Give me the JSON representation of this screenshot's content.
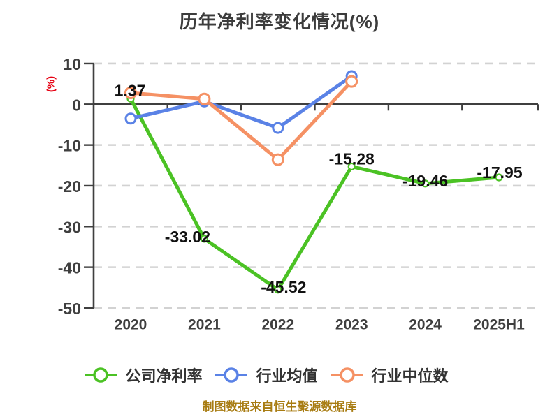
{
  "title": "历年净利率变化情况(%)",
  "footer": "制图数据来自恒生聚源数据库",
  "axes": {
    "y_label": "(%)"
  },
  "colors": {
    "title": "#3c3c3c",
    "axis": "#3f3f3f",
    "grid": "#d2d2d2",
    "tick_label": "#3f3f3f",
    "data_label": "#111111",
    "y_axis_title": "#e60012",
    "legend_text": "#333333",
    "footer": "#a87c12",
    "series_green": "#4bc224",
    "series_blue": "#5a82e6",
    "series_orange": "#f59164",
    "marker_fill": "#ffffff",
    "background": "#ffffff"
  },
  "chart_data": {
    "type": "line",
    "title": "历年净利率变化情况(%)",
    "ylabel": "(%)",
    "categories": [
      "2020",
      "2021",
      "2022",
      "2023",
      "2024",
      "2025H1"
    ],
    "y_ticks": [
      10,
      0,
      -10,
      -20,
      -30,
      -40,
      -50
    ],
    "ylim": [
      -50,
      10
    ],
    "grid": "horizontal-dashed",
    "x_axis_position": "zero",
    "legend_position": "bottom",
    "series": [
      {
        "key": "company-net-margin",
        "name": "公司净利率",
        "color": "#4bc224",
        "values": [
          1.37,
          -33.02,
          -45.52,
          -15.28,
          -19.46,
          -17.95
        ],
        "point_labels": [
          "1.37",
          "-33.02",
          "-45.52",
          "-15.28",
          "-19.46",
          "-17.95"
        ]
      },
      {
        "key": "industry-mean",
        "name": "行业均值",
        "color": "#5a82e6",
        "values": [
          -3.5,
          0.7,
          -5.8,
          6.9,
          null,
          null
        ],
        "point_labels": null
      },
      {
        "key": "industry-median",
        "name": "行业中位数",
        "color": "#f59164",
        "values": [
          2.8,
          1.3,
          -13.6,
          5.6,
          null,
          null
        ],
        "point_labels": null
      }
    ]
  }
}
